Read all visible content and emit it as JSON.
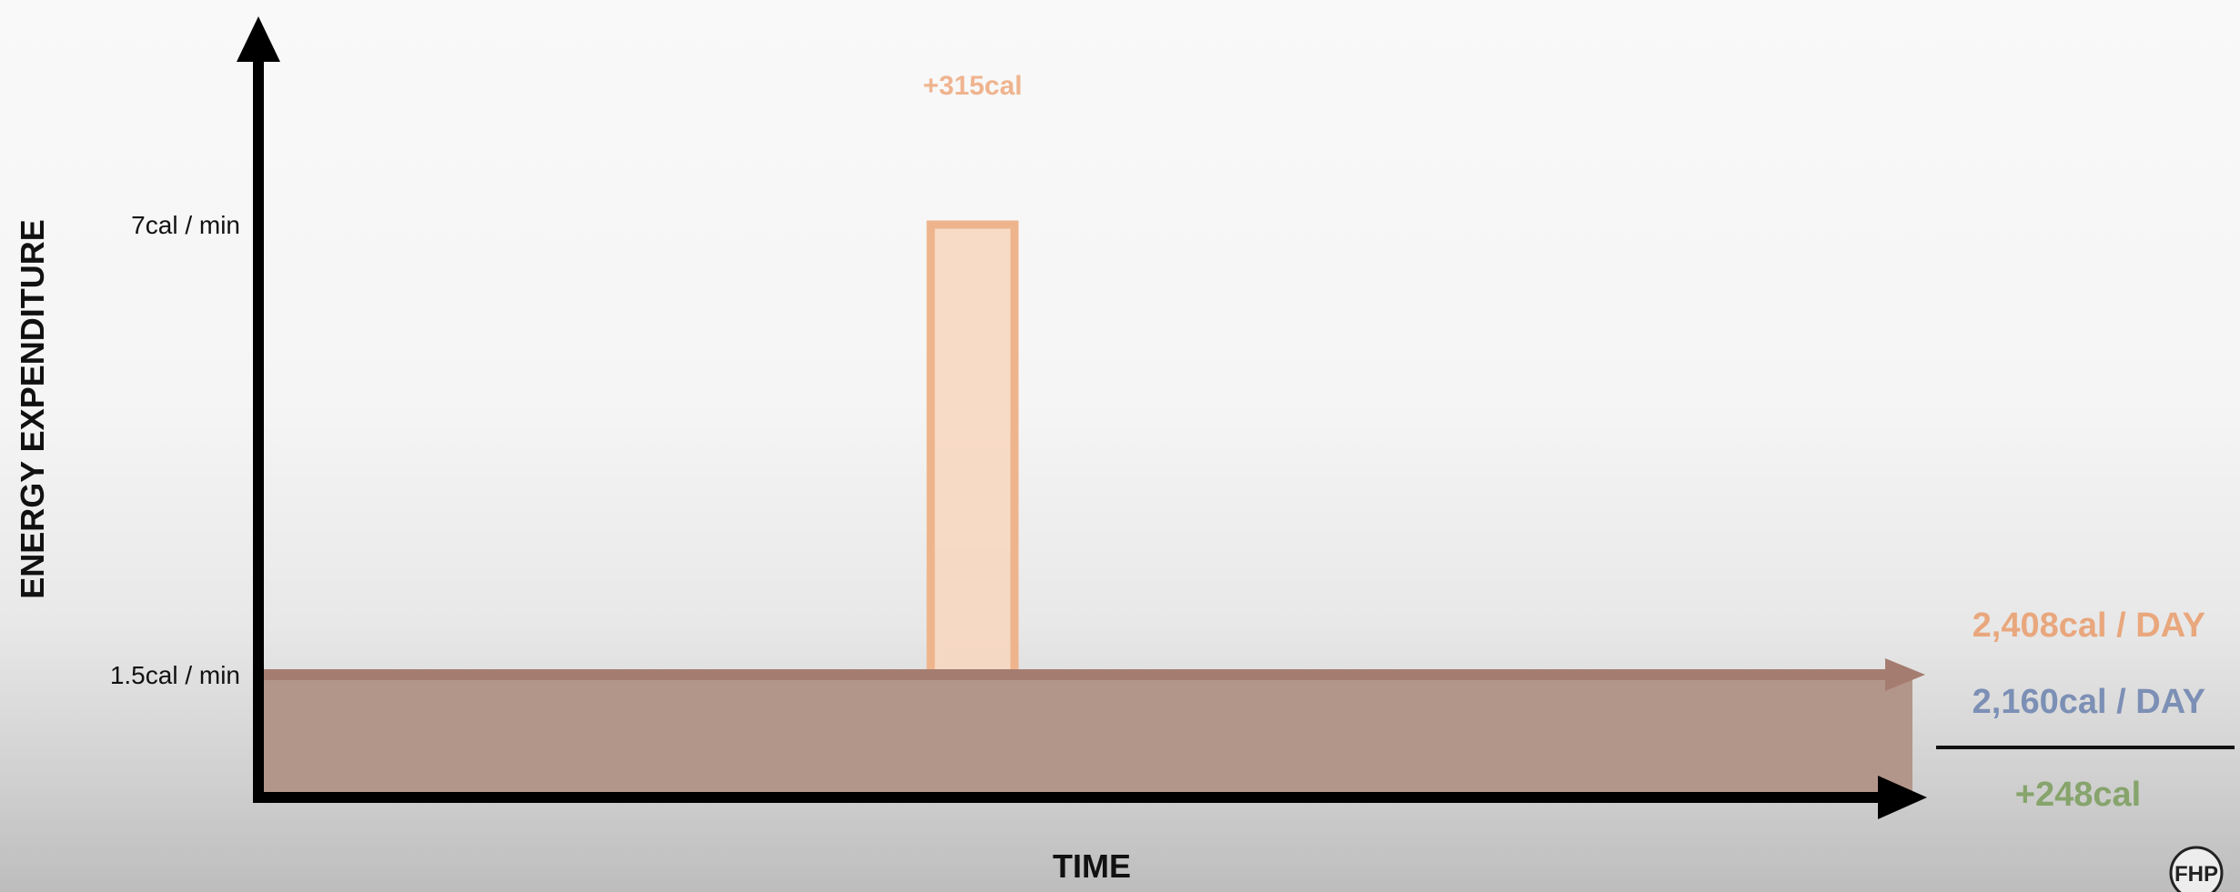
{
  "chart_data": {
    "type": "area",
    "ylabel": "ENERGY EXPENDITURE",
    "xlabel": "TIME",
    "y_ticks": [
      {
        "value": 7,
        "label": "7cal / min"
      },
      {
        "value": 1.5,
        "label": "1.5cal / min"
      }
    ],
    "baseline": {
      "value": 1.5
    },
    "spike": {
      "value": 7,
      "label": "+315cal"
    },
    "summary": {
      "total_with_exercise": "2,408cal / DAY",
      "total_baseline": "2,160cal / DAY",
      "difference": "+248cal"
    },
    "colors": {
      "baseline_fill": "#b3968a",
      "baseline_line": "#a57d70",
      "spike_fill": "#f8d6be",
      "spike_stroke": "#eeb48c",
      "spike_label": "#efb48f",
      "total_with_exercise": "#e9a77d",
      "total_baseline": "#7c8fb5",
      "difference": "#86a46c",
      "axis": "#000000"
    }
  },
  "logo": {
    "text": "FHP"
  }
}
